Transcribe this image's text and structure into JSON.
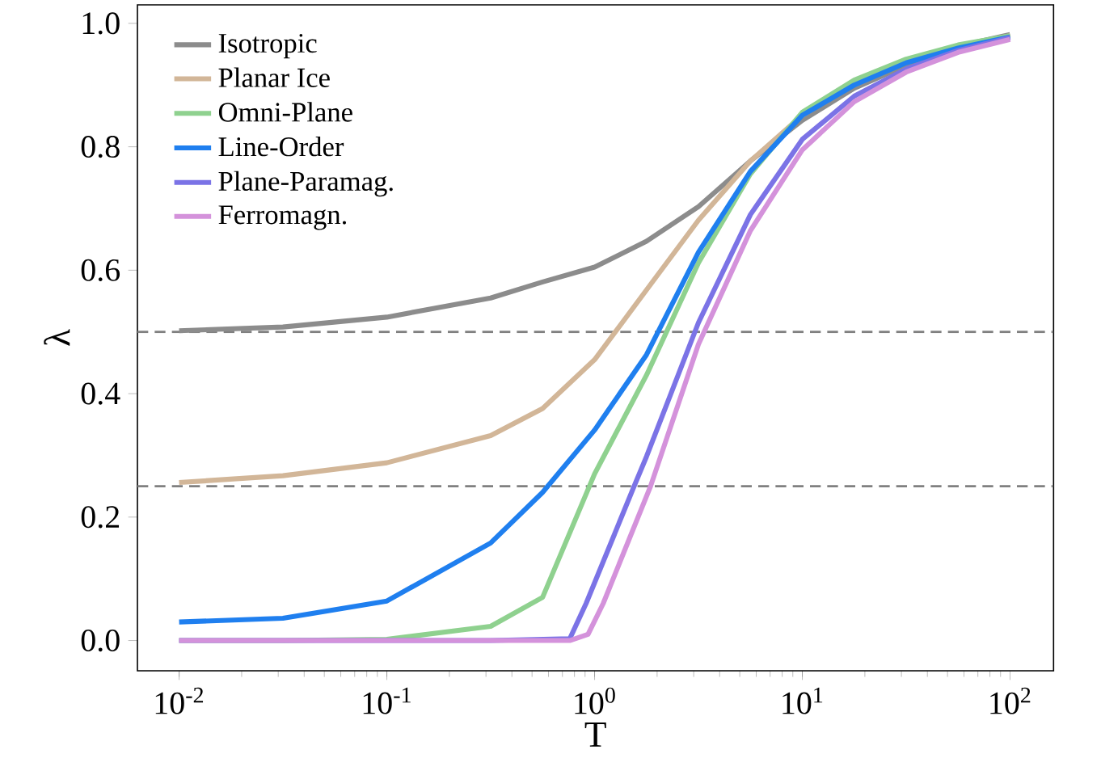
{
  "chart_data": {
    "type": "line",
    "xlabel": "T",
    "ylabel": "λ",
    "log": "x",
    "legend": "top left",
    "xlim": [
      0.0063,
      162
    ],
    "ylim": [
      -0.049,
      1.03
    ],
    "xticks": [
      {
        "value": 0.01,
        "label": "10$^{-2}$"
      },
      {
        "value": 0.1,
        "label": "10$^{-1}$"
      },
      {
        "value": 1,
        "label": "10$^{0}$"
      },
      {
        "value": 10,
        "label": "10$^{1}$"
      },
      {
        "value": 100,
        "label": "10$^{2}$"
      }
    ],
    "yticks": [
      {
        "value": 0,
        "label": "0.0"
      },
      {
        "value": 0.2,
        "label": "0.2"
      },
      {
        "value": 0.4,
        "label": "0.4"
      },
      {
        "value": 0.6,
        "label": "0.6"
      },
      {
        "value": 0.8,
        "label": "0.8"
      },
      {
        "value": 1,
        "label": "1.0"
      }
    ],
    "ref_lines": [
      {
        "axis": "y",
        "value": 0.5,
        "color": "#808080",
        "line_style": "dashed"
      },
      {
        "axis": "y",
        "value": 0.25,
        "color": "#808080",
        "line_style": "dashed"
      }
    ],
    "series": [
      {
        "name": "Isotropic",
        "color": "#8c8c8c",
        "x": [
          0.01,
          0.0316,
          0.1,
          0.316,
          0.562,
          1,
          1.778,
          3.162,
          5.623,
          10,
          17.78,
          31.62,
          56.23,
          100
        ],
        "values": [
          0.502,
          0.508,
          0.524,
          0.555,
          0.581,
          0.605,
          0.647,
          0.703,
          0.777,
          0.843,
          0.895,
          0.932,
          0.963,
          0.982
        ]
      },
      {
        "name": "Planar Ice",
        "color": "#d2b698",
        "x": [
          0.01,
          0.0316,
          0.1,
          0.316,
          0.562,
          1,
          1.778,
          3.162,
          5.623,
          10,
          17.78,
          31.62,
          56.23,
          100
        ],
        "values": [
          0.256,
          0.267,
          0.288,
          0.332,
          0.376,
          0.455,
          0.568,
          0.681,
          0.777,
          0.851,
          0.903,
          0.939,
          0.962,
          0.98
        ]
      },
      {
        "name": "Omni-Plane",
        "color": "#8fd18f",
        "x": [
          0.01,
          0.0316,
          0.1,
          0.316,
          0.562,
          1,
          1.778,
          3.162,
          5.623,
          10,
          17.78,
          31.62,
          56.23,
          100
        ],
        "values": [
          0.0,
          0.0,
          0.002,
          0.023,
          0.07,
          0.27,
          0.43,
          0.612,
          0.756,
          0.856,
          0.908,
          0.942,
          0.965,
          0.98
        ]
      },
      {
        "name": "Line-Order",
        "color": "#1f7fef",
        "x": [
          0.01,
          0.0316,
          0.1,
          0.316,
          0.562,
          1,
          1.778,
          3.162,
          5.623,
          10,
          17.78,
          31.62,
          56.23,
          100
        ],
        "values": [
          0.03,
          0.036,
          0.064,
          0.158,
          0.24,
          0.341,
          0.463,
          0.629,
          0.76,
          0.851,
          0.9,
          0.936,
          0.96,
          0.978
        ]
      },
      {
        "name": "Plane-Paramag.",
        "color": "#7b73e6",
        "x": [
          0.01,
          0.1,
          0.316,
          0.76,
          0.91,
          1.55,
          1.778,
          3.162,
          5.623,
          10,
          17.78,
          31.62,
          56.23,
          100
        ],
        "values": [
          0.0,
          0.0,
          0.0,
          0.003,
          0.06,
          0.25,
          0.298,
          0.515,
          0.69,
          0.812,
          0.882,
          0.926,
          0.956,
          0.977
        ]
      },
      {
        "name": "Ferromagn.",
        "color": "#d492db",
        "x": [
          0.01,
          0.1,
          0.316,
          0.76,
          0.93,
          1.1,
          1.86,
          3.162,
          5.623,
          10,
          17.78,
          31.62,
          56.23,
          100
        ],
        "values": [
          0.0,
          0.0,
          0.0,
          0.0,
          0.01,
          0.06,
          0.25,
          0.48,
          0.664,
          0.795,
          0.873,
          0.921,
          0.953,
          0.974
        ]
      }
    ]
  }
}
